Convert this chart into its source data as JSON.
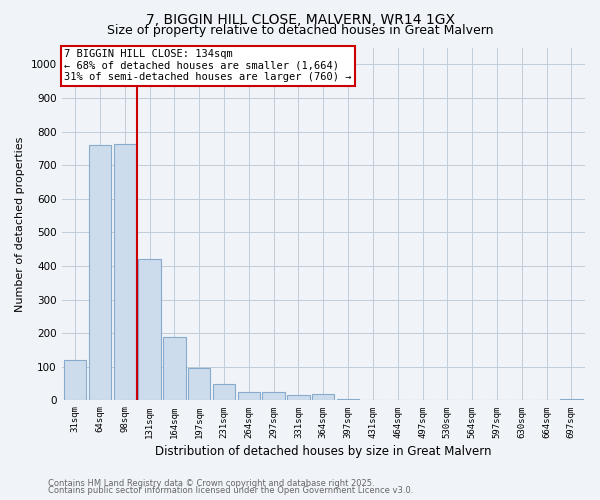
{
  "title1": "7, BIGGIN HILL CLOSE, MALVERN, WR14 1GX",
  "title2": "Size of property relative to detached houses in Great Malvern",
  "xlabel": "Distribution of detached houses by size in Great Malvern",
  "ylabel": "Number of detached properties",
  "categories": [
    "31sqm",
    "64sqm",
    "98sqm",
    "131sqm",
    "164sqm",
    "197sqm",
    "231sqm",
    "264sqm",
    "297sqm",
    "331sqm",
    "364sqm",
    "397sqm",
    "431sqm",
    "464sqm",
    "497sqm",
    "530sqm",
    "564sqm",
    "597sqm",
    "630sqm",
    "664sqm",
    "697sqm"
  ],
  "values": [
    120,
    760,
    762,
    420,
    188,
    97,
    50,
    25,
    25,
    15,
    18,
    3,
    2,
    1,
    0,
    0,
    0,
    0,
    0,
    0,
    5
  ],
  "bar_color": "#ccdcec",
  "bar_edgecolor": "#88aacc",
  "vline_color": "#cc0000",
  "vline_x_index": 2.5,
  "annotation_text": "7 BIGGIN HILL CLOSE: 134sqm\n← 68% of detached houses are smaller (1,664)\n31% of semi-detached houses are larger (760) →",
  "annotation_box_facecolor": "#ffffff",
  "annotation_box_edgecolor": "#cc0000",
  "annotation_fontsize": 7.5,
  "ylim": [
    0,
    1050
  ],
  "yticks": [
    0,
    100,
    200,
    300,
    400,
    500,
    600,
    700,
    800,
    900,
    1000
  ],
  "footnote1": "Contains HM Land Registry data © Crown copyright and database right 2025.",
  "footnote2": "Contains public sector information licensed under the Open Government Licence v3.0.",
  "background_color": "#f0f4f8",
  "grid_color": "#c0ccd8",
  "title1_fontsize": 10,
  "title2_fontsize": 9
}
